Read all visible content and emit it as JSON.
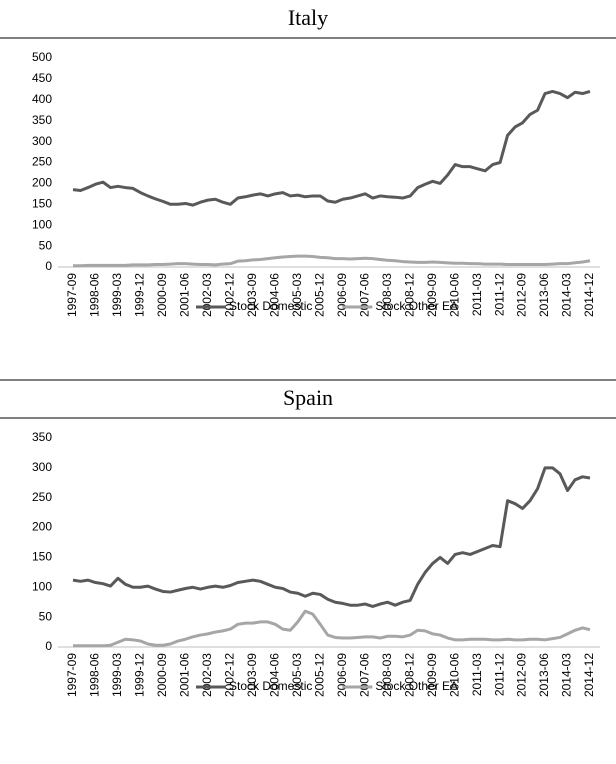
{
  "chart_data": [
    {
      "type": "line",
      "title": "Italy",
      "categories": [
        "1997-09",
        null,
        null,
        "1998-06",
        null,
        null,
        "1999-03",
        null,
        null,
        "1999-12",
        null,
        null,
        "2000-09",
        null,
        null,
        "2001-06",
        null,
        null,
        "2002-03",
        null,
        null,
        "2002-12",
        null,
        null,
        "2003-09",
        null,
        null,
        "2004-06",
        null,
        null,
        "2005-03",
        null,
        null,
        "2005-12",
        null,
        null,
        "2006-09",
        null,
        null,
        "2007-06",
        null,
        null,
        "2008-03",
        null,
        null,
        "2008-12",
        null,
        null,
        "2009-09",
        null,
        null,
        "2010-06",
        null,
        null,
        "2011-03",
        null,
        null,
        "2011-12",
        null,
        null,
        "2012-09",
        null,
        null,
        "2013-06",
        null,
        null,
        "2014-03",
        null,
        null,
        "2014-12"
      ],
      "series": [
        {
          "name": "Stock Domestic",
          "color": "#595959",
          "values": [
            185,
            183,
            190,
            198,
            203,
            190,
            193,
            190,
            188,
            178,
            170,
            163,
            157,
            150,
            150,
            152,
            148,
            155,
            160,
            162,
            155,
            150,
            165,
            168,
            172,
            175,
            170,
            175,
            178,
            170,
            172,
            168,
            170,
            170,
            158,
            155,
            162,
            165,
            170,
            175,
            165,
            170,
            168,
            167,
            165,
            170,
            190,
            198,
            205,
            200,
            220,
            245,
            240,
            240,
            235,
            230,
            245,
            250,
            315,
            335,
            345,
            365,
            375,
            415,
            420,
            415,
            405,
            418,
            415,
            420
          ]
        },
        {
          "name": "Stock Other EA",
          "color": "#a6a6a6",
          "values": [
            3,
            3,
            4,
            4,
            4,
            4,
            4,
            4,
            5,
            5,
            5,
            6,
            6,
            7,
            8,
            8,
            7,
            6,
            6,
            5,
            7,
            8,
            14,
            15,
            17,
            18,
            20,
            22,
            24,
            25,
            26,
            26,
            25,
            23,
            22,
            20,
            20,
            19,
            20,
            21,
            20,
            18,
            16,
            15,
            13,
            12,
            11,
            11,
            12,
            11,
            10,
            9,
            9,
            8,
            8,
            7,
            7,
            7,
            6,
            6,
            6,
            6,
            6,
            6,
            7,
            8,
            8,
            10,
            12,
            15
          ]
        }
      ],
      "ylim": [
        0,
        500
      ],
      "yticks": [
        0,
        50,
        100,
        150,
        200,
        250,
        300,
        350,
        400,
        450,
        500
      ],
      "grid": false,
      "legend": "bottom"
    },
    {
      "type": "line",
      "title": "Spain",
      "categories": [
        "1997-09",
        null,
        null,
        "1998-06",
        null,
        null,
        "1999-03",
        null,
        null,
        "1999-12",
        null,
        null,
        "2000-09",
        null,
        null,
        "2001-06",
        null,
        null,
        "2002-03",
        null,
        null,
        "2002-12",
        null,
        null,
        "2003-09",
        null,
        null,
        "2004-06",
        null,
        null,
        "2005-03",
        null,
        null,
        "2005-12",
        null,
        null,
        "2006-09",
        null,
        null,
        "2007-06",
        null,
        null,
        "2008-03",
        null,
        null,
        "2008-12",
        null,
        null,
        "2009-09",
        null,
        null,
        "2010-06",
        null,
        null,
        "2011-03",
        null,
        null,
        "2011-12",
        null,
        null,
        "2012-09",
        null,
        null,
        "2013-06",
        null,
        null,
        "2014-03",
        null,
        null,
        "2014-12"
      ],
      "series": [
        {
          "name": "Stock Domestic",
          "color": "#595959",
          "values": [
            112,
            110,
            112,
            108,
            106,
            102,
            115,
            105,
            100,
            100,
            102,
            97,
            93,
            92,
            95,
            98,
            100,
            97,
            100,
            102,
            100,
            103,
            108,
            110,
            112,
            110,
            105,
            100,
            98,
            92,
            90,
            85,
            90,
            88,
            80,
            75,
            73,
            70,
            70,
            72,
            68,
            72,
            75,
            70,
            75,
            78,
            105,
            125,
            140,
            150,
            140,
            155,
            158,
            155,
            160,
            165,
            170,
            168,
            245,
            240,
            232,
            245,
            265,
            300,
            300,
            290,
            262,
            280,
            285,
            283
          ]
        },
        {
          "name": "Stock Other EA",
          "color": "#a6a6a6",
          "values": [
            2,
            2,
            2,
            2,
            2,
            3,
            8,
            13,
            12,
            10,
            5,
            3,
            3,
            5,
            10,
            13,
            17,
            20,
            22,
            25,
            27,
            30,
            38,
            40,
            40,
            42,
            42,
            38,
            30,
            28,
            42,
            60,
            55,
            38,
            20,
            16,
            15,
            15,
            16,
            17,
            17,
            15,
            18,
            18,
            17,
            20,
            28,
            27,
            22,
            20,
            15,
            12,
            12,
            13,
            13,
            13,
            12,
            12,
            13,
            12,
            12,
            13,
            13,
            12,
            14,
            16,
            22,
            28,
            32,
            29
          ]
        }
      ],
      "ylim": [
        0,
        350
      ],
      "yticks": [
        0,
        50,
        100,
        150,
        200,
        250,
        300,
        350
      ],
      "grid": false,
      "legend": "bottom"
    }
  ]
}
